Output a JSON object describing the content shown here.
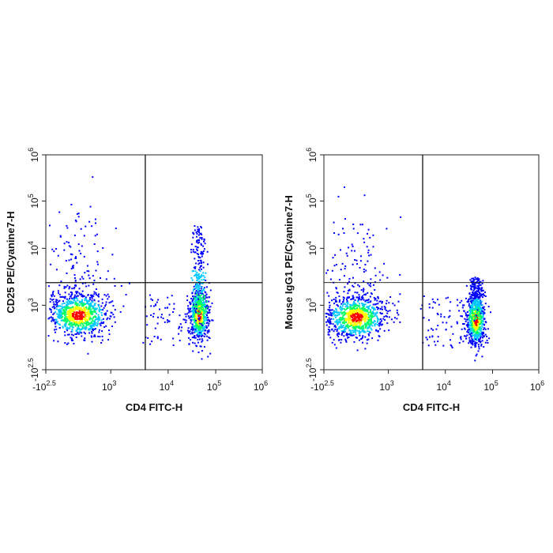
{
  "chart_data": [
    {
      "type": "scatter",
      "subtype": "flow-cytometry-density-dotplot",
      "title": "",
      "xlabel": "CD4 FITC-H",
      "ylabel": "CD25 PE/Cyanine7-H",
      "x_scale": "biexponential",
      "y_scale": "biexponential",
      "xlim": [
        "-10^2.5",
        "10^6"
      ],
      "ylim": [
        "-10^2.5",
        "10^6"
      ],
      "x_ticks": [
        {
          "base": "-10",
          "exp": "2.5"
        },
        {
          "base": "10",
          "exp": "3"
        },
        {
          "base": "10",
          "exp": "4"
        },
        {
          "base": "10",
          "exp": "5"
        },
        {
          "base": "10",
          "exp": "6"
        }
      ],
      "y_ticks": [
        {
          "base": "-10",
          "exp": "2.5"
        },
        {
          "base": "10",
          "exp": "3"
        },
        {
          "base": "10",
          "exp": "4"
        },
        {
          "base": "10",
          "exp": "5"
        },
        {
          "base": "10",
          "exp": "6"
        }
      ],
      "gates": {
        "x": 4000,
        "y": 2500
      },
      "populations": [
        {
          "name_note": "CD4-negative cluster",
          "x_center": 350,
          "y_center": 800,
          "density": "high"
        },
        {
          "name_note": "CD4-positive cluster",
          "x_center": 45000,
          "y_center": 800,
          "density": "high",
          "upward_tail_to": 30000
        }
      ],
      "colors": [
        "#0000ff",
        "#00c8ff",
        "#00ff66",
        "#ffff00",
        "#ff0000"
      ],
      "grid": false,
      "legend": "none"
    },
    {
      "type": "scatter",
      "subtype": "flow-cytometry-density-dotplot",
      "title": "",
      "xlabel": "CD4 FITC-H",
      "ylabel": "Mouse IgG1 PE/Cyanine7-H",
      "x_scale": "biexponential",
      "y_scale": "biexponential",
      "xlim": [
        "-10^2.5",
        "10^6"
      ],
      "ylim": [
        "-10^2.5",
        "10^6"
      ],
      "x_ticks": [
        {
          "base": "-10",
          "exp": "2.5"
        },
        {
          "base": "10",
          "exp": "3"
        },
        {
          "base": "10",
          "exp": "4"
        },
        {
          "base": "10",
          "exp": "5"
        },
        {
          "base": "10",
          "exp": "6"
        }
      ],
      "y_ticks": [
        {
          "base": "-10",
          "exp": "2.5"
        },
        {
          "base": "10",
          "exp": "3"
        },
        {
          "base": "10",
          "exp": "4"
        },
        {
          "base": "10",
          "exp": "5"
        },
        {
          "base": "10",
          "exp": "6"
        }
      ],
      "gates": {
        "x": 4000,
        "y": 2500
      },
      "populations": [
        {
          "name_note": "CD4-negative cluster",
          "x_center": 350,
          "y_center": 750,
          "density": "high"
        },
        {
          "name_note": "CD4-positive cluster",
          "x_center": 45000,
          "y_center": 700,
          "density": "high",
          "upward_tail_to": 3000
        }
      ],
      "colors": [
        "#0000ff",
        "#00c8ff",
        "#00ff66",
        "#ffff00",
        "#ff0000"
      ],
      "grid": false,
      "legend": "none"
    }
  ]
}
